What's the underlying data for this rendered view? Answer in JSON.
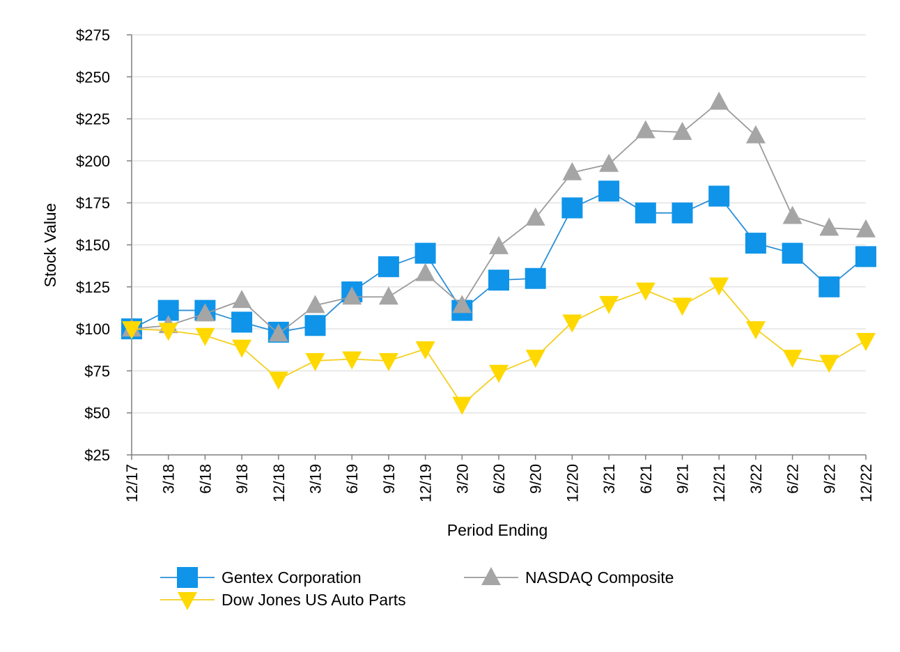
{
  "chart_data": {
    "type": "line",
    "title": "",
    "xlabel": "Period Ending",
    "ylabel": "Stock Value",
    "ylim": [
      25,
      275
    ],
    "ytick_step": 25,
    "ytick_prefix": "$",
    "grid": "horizontal",
    "legend_position": "bottom",
    "categories": [
      "12/17",
      "3/18",
      "6/18",
      "9/18",
      "12/18",
      "3/19",
      "6/19",
      "9/19",
      "12/19",
      "3/20",
      "6/20",
      "9/20",
      "12/20",
      "3/21",
      "6/21",
      "9/21",
      "12/21",
      "3/22",
      "6/22",
      "9/22",
      "12/22"
    ],
    "series": [
      {
        "name": "Gentex Corporation",
        "color": "#0f94e9",
        "line_color": "#2a8fd6",
        "marker": "square",
        "values": [
          100,
          111,
          111,
          104,
          98,
          102,
          122,
          137,
          145,
          111,
          129,
          130,
          172,
          182,
          169,
          169,
          179,
          151,
          145,
          125,
          143
        ]
      },
      {
        "name": "NASDAQ Composite",
        "color": "#a5a5a5",
        "line_color": "#9a9a9a",
        "marker": "triangle-up",
        "values": [
          100,
          102,
          109,
          117,
          97,
          114,
          119,
          119,
          133,
          114,
          149,
          166,
          193,
          198,
          218,
          217,
          235,
          215,
          167,
          160,
          159
        ]
      },
      {
        "name": "Dow Jones US Auto Parts",
        "color": "#ffd800",
        "line_color": "#f5cf1e",
        "marker": "triangle-down",
        "values": [
          100,
          99,
          96,
          89,
          70,
          81,
          82,
          81,
          88,
          55,
          74,
          83,
          104,
          115,
          123,
          114,
          126,
          100,
          83,
          80,
          93
        ]
      }
    ]
  }
}
